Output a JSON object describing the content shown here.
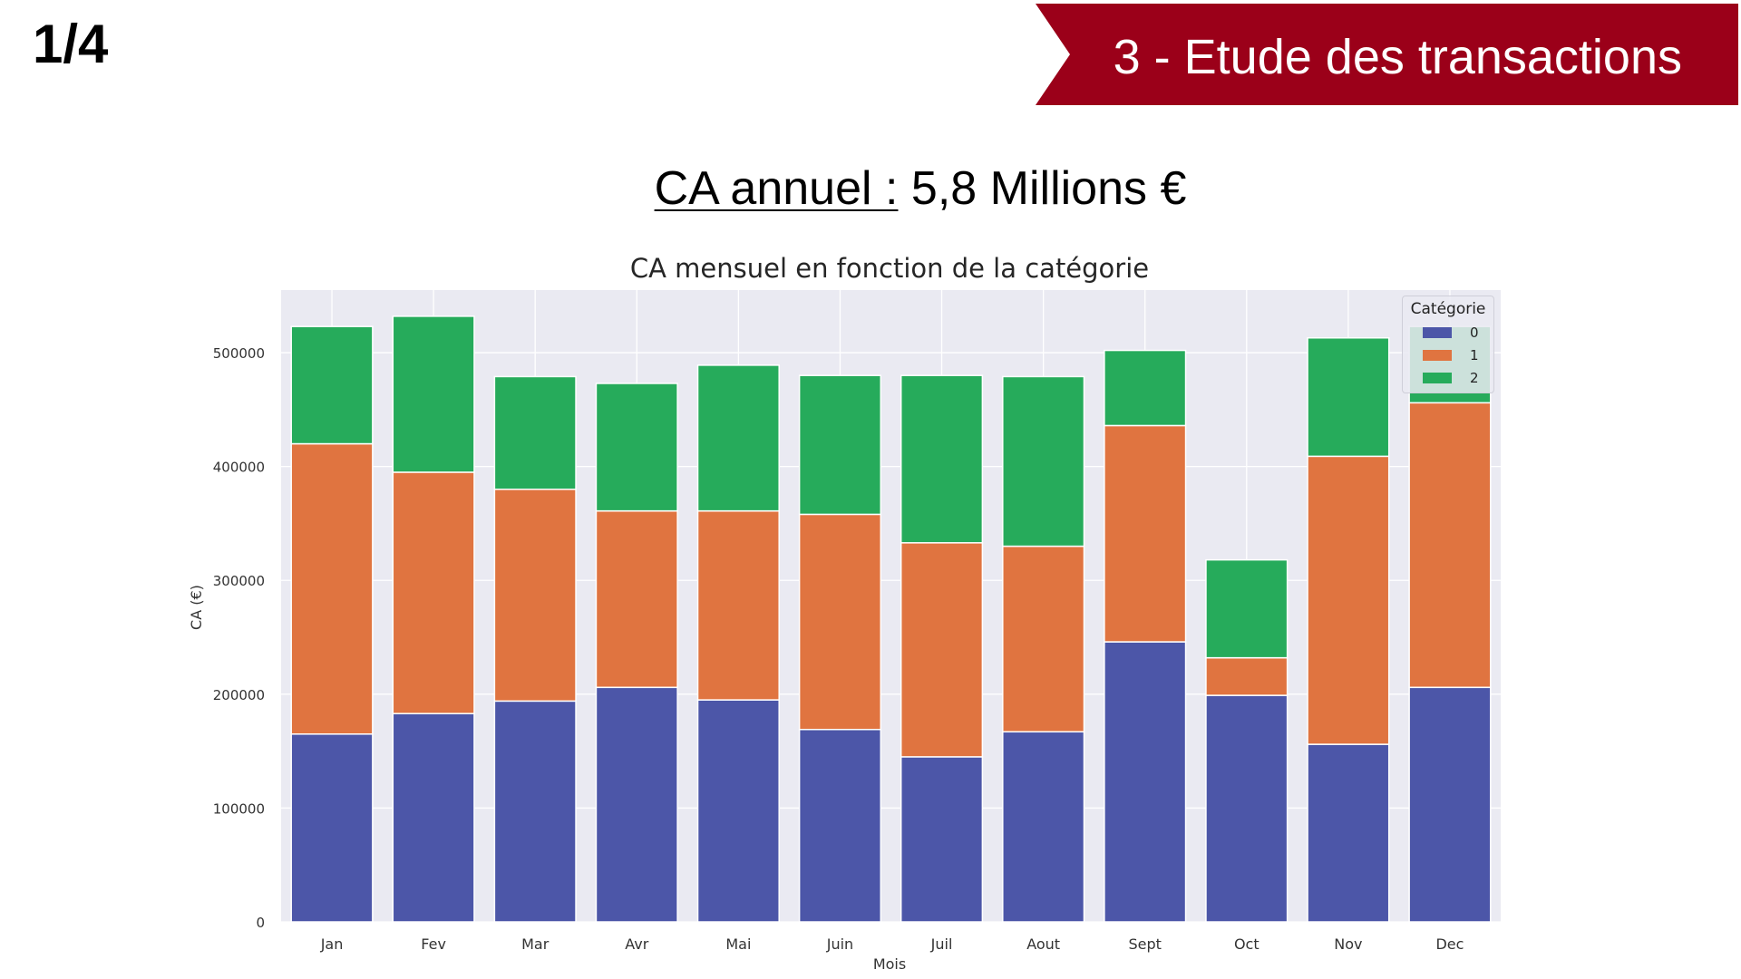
{
  "slide": {
    "page_number": "1/4",
    "section_title": "3 - Etude des transactions",
    "banner_color": "#9b0019",
    "headline_label": "CA annuel :",
    "headline_value": " 5,8 Millions €"
  },
  "chart_data": {
    "type": "bar",
    "stacked": true,
    "title": "CA mensuel en fonction de la catégorie",
    "xlabel": "Mois",
    "ylabel": "CA (€)",
    "ylim": [
      0,
      555000
    ],
    "yticks": [
      0,
      100000,
      200000,
      300000,
      400000,
      500000
    ],
    "ytick_labels": [
      "0",
      "100000",
      "200000",
      "300000",
      "400000",
      "500000"
    ],
    "grid": true,
    "background": "#eaeaf2",
    "categories": [
      "Jan",
      "Fev",
      "Mar",
      "Avr",
      "Mai",
      "Juin",
      "Juil",
      "Aout",
      "Sept",
      "Oct",
      "Nov",
      "Dec"
    ],
    "series": [
      {
        "name": "0",
        "color": "#4c56a8",
        "values": [
          165000,
          183000,
          194000,
          206000,
          195000,
          169000,
          145000,
          167000,
          246000,
          199000,
          156000,
          206000
        ]
      },
      {
        "name": "1",
        "color": "#e07440",
        "values": [
          255000,
          212000,
          186000,
          155000,
          166000,
          189000,
          188000,
          163000,
          190000,
          33000,
          253000,
          250000
        ]
      },
      {
        "name": "2",
        "color": "#26ab5b",
        "values": [
          103000,
          137000,
          99000,
          112000,
          128000,
          122000,
          147000,
          149000,
          66000,
          86000,
          104000,
          67000
        ]
      }
    ],
    "legend": {
      "title": "Catégorie",
      "placement": "top-right"
    }
  }
}
